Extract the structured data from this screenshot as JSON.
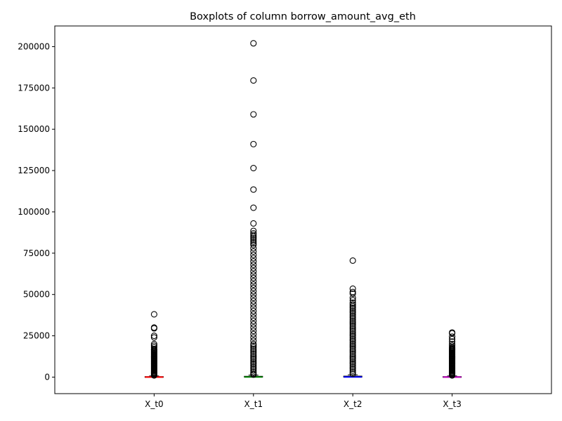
{
  "chart_data": {
    "type": "boxplot",
    "title": "Boxplots of column borrow_amount_avg_eth",
    "xlabel": "",
    "ylabel": "",
    "ylim": [
      -10000,
      212500
    ],
    "yticks": [
      0,
      25000,
      50000,
      75000,
      100000,
      125000,
      150000,
      175000,
      200000
    ],
    "ytick_labels": [
      "0",
      "25000",
      "50000",
      "75000",
      "100000",
      "125000",
      "150000",
      "175000",
      "200000"
    ],
    "categories": [
      "X_t0",
      "X_t1",
      "X_t2",
      "X_t3"
    ],
    "grid": false,
    "series": [
      {
        "category": "X_t0",
        "median_color": "#ff0000",
        "q1": 0,
        "median": 50,
        "q3": 300,
        "whisker_low": 0,
        "whisker_high": 700,
        "outliers": [
          38000,
          30000,
          29500,
          25000,
          24000,
          20000,
          19000,
          18000,
          17000,
          16500,
          16000,
          15500,
          15000,
          14500,
          14000,
          13500,
          13000,
          12500,
          12000,
          11500,
          11000,
          10500,
          10000,
          9500,
          9000,
          8500,
          8000,
          7500,
          7000,
          6500,
          6000,
          5500,
          5000,
          4500,
          4000,
          3500,
          3000,
          2500,
          2000,
          1500,
          1000
        ]
      },
      {
        "category": "X_t1",
        "median_color": "#008000",
        "q1": 0,
        "median": 100,
        "q3": 500,
        "whisker_low": 0,
        "whisker_high": 1200,
        "outliers": [
          202000,
          179500,
          159000,
          141000,
          126500,
          113500,
          102500,
          93000,
          88500,
          87000,
          86000,
          85000,
          84000,
          83000,
          82000,
          81000,
          80000,
          78000,
          76000,
          74000,
          72000,
          70000,
          68000,
          66000,
          64000,
          62000,
          60000,
          58000,
          56000,
          54000,
          52000,
          50000,
          48000,
          46000,
          44000,
          42000,
          40000,
          38000,
          36000,
          34000,
          32000,
          30000,
          28000,
          26000,
          24000,
          22000,
          20000,
          19000,
          18000,
          17000,
          16000,
          15000,
          14000,
          13000,
          12000,
          11000,
          10000,
          9000,
          8000,
          7000,
          6000,
          5000,
          4000,
          3000,
          2000,
          1500
        ]
      },
      {
        "category": "X_t2",
        "median_color": "#0000ff",
        "q1": 0,
        "median": 100,
        "q3": 600,
        "whisker_low": 0,
        "whisker_high": 1400,
        "outliers": [
          70500,
          53500,
          51500,
          50500,
          48000,
          46500,
          45000,
          44000,
          43000,
          42000,
          41000,
          40000,
          39000,
          38000,
          37000,
          36000,
          35000,
          34000,
          33000,
          32000,
          31000,
          30000,
          29000,
          28000,
          27000,
          26000,
          25000,
          24000,
          23000,
          22000,
          21000,
          20000,
          19000,
          18000,
          17000,
          16000,
          15000,
          14000,
          13000,
          12000,
          11000,
          10000,
          9000,
          8000,
          7000,
          6000,
          5000,
          4000,
          3000,
          2000
        ]
      },
      {
        "category": "X_t3",
        "median_color": "#bf00bf",
        "q1": 0,
        "median": 50,
        "q3": 300,
        "whisker_low": 0,
        "whisker_high": 700,
        "outliers": [
          27000,
          26500,
          24500,
          23000,
          21500,
          20000,
          19000,
          18000,
          17500,
          17000,
          16500,
          16000,
          15500,
          15000,
          14500,
          14000,
          13500,
          13000,
          12500,
          12000,
          11500,
          11000,
          10500,
          10000,
          9500,
          9000,
          8500,
          8000,
          7500,
          7000,
          6500,
          6000,
          5500,
          5000,
          4500,
          4000,
          3500,
          3000,
          2500,
          2000,
          1500,
          1000
        ]
      }
    ]
  }
}
